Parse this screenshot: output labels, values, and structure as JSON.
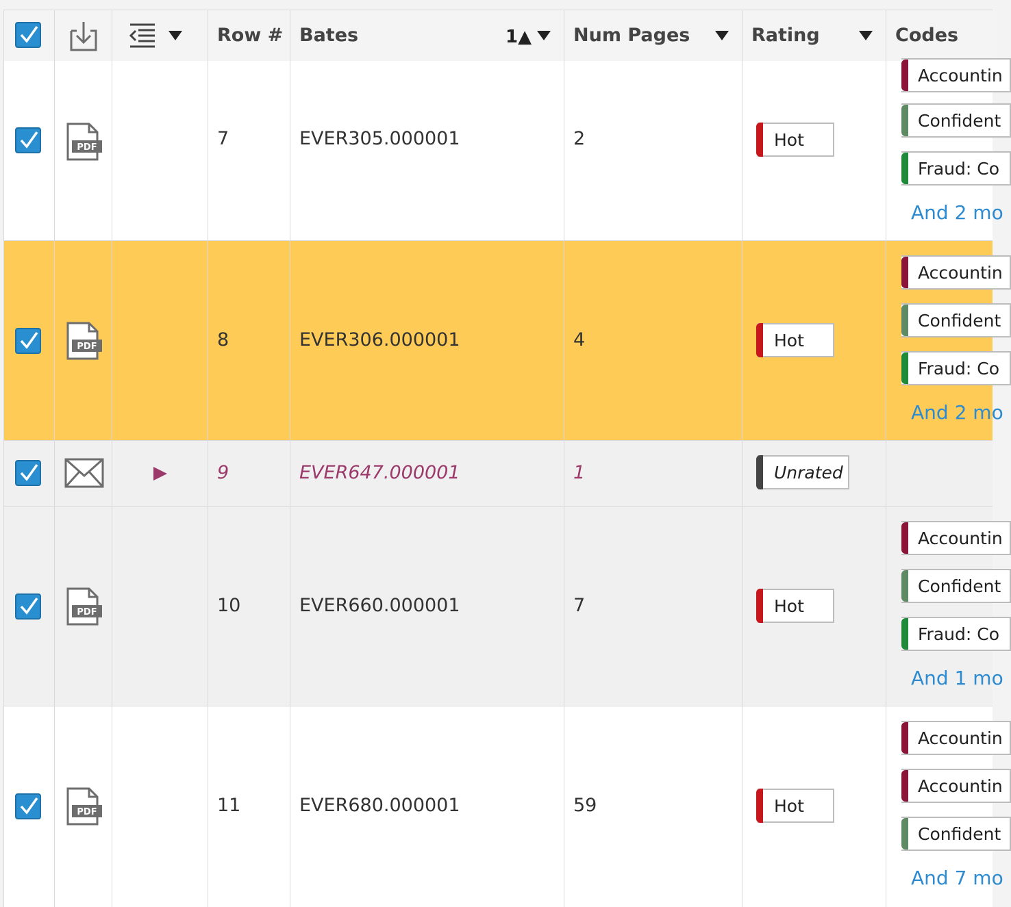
{
  "header": {
    "row_label": "Row #",
    "bates_label": "Bates",
    "bates_sort": "1▲",
    "pages_label": "Num Pages",
    "rating_label": "Rating",
    "codes_label": "Codes"
  },
  "colors": {
    "selected_row": "#fecb56",
    "checkbox": "#2a8fd0",
    "hot": "#c8161d",
    "unrated": "#444444",
    "code_accounting": "#8b1538",
    "code_confidential": "#5e8a64",
    "code_fraud": "#1e8a3a",
    "link": "#2e8bd0"
  },
  "rows": [
    {
      "row": "7",
      "bates": "EVER305.000001",
      "pages": "2",
      "rating": "Hot",
      "icon": "pdf-icon",
      "codes": [
        "Accountin",
        "Confident",
        "Fraud: Co"
      ],
      "more": "And 2 mo"
    },
    {
      "row": "8",
      "bates": "EVER306.000001",
      "pages": "4",
      "rating": "Hot",
      "icon": "pdf-icon",
      "codes": [
        "Accountin",
        "Confident",
        "Fraud: Co"
      ],
      "more": "And 2 mo"
    },
    {
      "row": "9",
      "bates": "EVER647.000001",
      "pages": "1",
      "rating": "Unrated",
      "icon": "envelope-icon",
      "codes": [],
      "more": ""
    },
    {
      "row": "10",
      "bates": "EVER660.000001",
      "pages": "7",
      "rating": "Hot",
      "icon": "pdf-icon",
      "codes": [
        "Accountin",
        "Confident",
        "Fraud: Co"
      ],
      "more": "And 1 mo"
    },
    {
      "row": "11",
      "bates": "EVER680.000001",
      "pages": "59",
      "rating": "Hot",
      "icon": "pdf-icon",
      "codes": [
        "Accountin",
        "Accountin",
        "Confident"
      ],
      "more": "And 7 mo"
    }
  ]
}
